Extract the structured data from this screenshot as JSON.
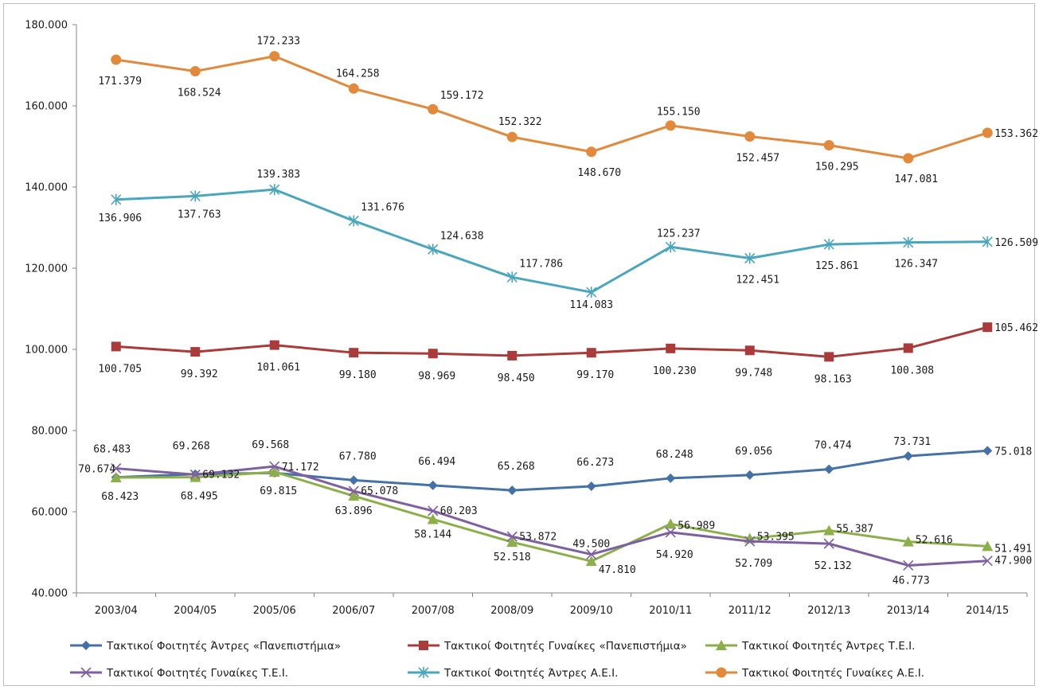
{
  "chart_data": {
    "type": "line",
    "title": "",
    "xlabel": "",
    "ylabel": "",
    "ylim": [
      40000,
      180000
    ],
    "y_ticks": [
      40000,
      60000,
      80000,
      100000,
      120000,
      140000,
      160000,
      180000
    ],
    "y_tick_labels": [
      "40.000",
      "60.000",
      "80.000",
      "100.000",
      "120.000",
      "140.000",
      "160.000",
      "180.000"
    ],
    "grid": false,
    "legend_position": "bottom",
    "categories": [
      "2003/04",
      "2004/05",
      "2005/06",
      "2006/07",
      "2007/08",
      "2008/09",
      "2009/10",
      "2010/11",
      "2011/12",
      "2012/13",
      "2013/14",
      "2014/15"
    ],
    "series": [
      {
        "name": "Τακτικοί Φοιτητές Άντρες «Πανεπιστήμια»",
        "color": "#4472a8",
        "marker": "diamond",
        "values": [
          68483,
          69268,
          69568,
          67780,
          66494,
          65268,
          66273,
          68248,
          69056,
          70474,
          73731,
          75018
        ],
        "labels": [
          "68.483",
          "69.268",
          "69.568",
          "67.780",
          "66.494",
          "65.268",
          "66.273",
          "68.248",
          "69.056",
          "70.474",
          "73.731",
          "75.018"
        ]
      },
      {
        "name": "Τακτικοί Φοιτητές Γυναίκες «Πανεπιστήμια»",
        "color": "#ab3b3a",
        "marker": "square",
        "values": [
          100705,
          99392,
          101061,
          99180,
          98969,
          98450,
          99170,
          100230,
          99748,
          98163,
          100308,
          105462
        ],
        "labels": [
          "100.705",
          "99.392",
          "101.061",
          "99.180",
          "98.969",
          "98.450",
          "99.170",
          "100.230",
          "99.748",
          "98.163",
          "100.308",
          "105.462"
        ]
      },
      {
        "name": "Τακτικοί Φοιτητές Άντρες Τ.Ε.Ι.",
        "color": "#8daf4a",
        "marker": "triangle",
        "values": [
          68423,
          68495,
          69815,
          63896,
          58144,
          52518,
          47810,
          56989,
          53395,
          55387,
          52616,
          51491
        ],
        "labels": [
          "68.423",
          "68.495",
          "69.815",
          "63.896",
          "58.144",
          "52.518",
          "47.810",
          "56.989",
          "53.395",
          "55.387",
          "52.616",
          "51.491"
        ]
      },
      {
        "name": "Τακτικοί Φοιτητές Γυναίκες Τ.Ε.Ι.",
        "color": "#7e5fa0",
        "marker": "x",
        "values": [
          70674,
          69132,
          71172,
          65078,
          60203,
          53872,
          49500,
          54920,
          52709,
          52132,
          46773,
          47900
        ],
        "labels": [
          "70.674",
          "69.132",
          "71.172",
          "65.078",
          "60.203",
          "53.872",
          "49.500",
          "54.920",
          "52.709",
          "52.132",
          "46.773",
          "47.900"
        ]
      },
      {
        "name": "Τακτικοί Φοιτητές Άντρες Α.Ε.Ι.",
        "color": "#4aa6bd",
        "marker": "asterisk",
        "values": [
          136906,
          137763,
          139383,
          131676,
          124638,
          117786,
          114083,
          125237,
          122451,
          125861,
          126347,
          126509
        ],
        "labels": [
          "136.906",
          "137.763",
          "139.383",
          "131.676",
          "124.638",
          "117.786",
          "114.083",
          "125.237",
          "122.451",
          "125.861",
          "126.347",
          "126.509"
        ]
      },
      {
        "name": "Τακτικοί Φοιτητές Γυναίκες Α.Ε.Ι.",
        "color": "#e3893c",
        "marker": "circle",
        "values": [
          171379,
          168524,
          172233,
          164258,
          159172,
          152322,
          148670,
          155150,
          152457,
          150295,
          147081,
          153362
        ],
        "labels": [
          "171.379",
          "168.524",
          "172.233",
          "164.258",
          "159.172",
          "152.322",
          "148.670",
          "155.150",
          "152.457",
          "150.295",
          "147.081",
          "153.362"
        ]
      }
    ]
  }
}
